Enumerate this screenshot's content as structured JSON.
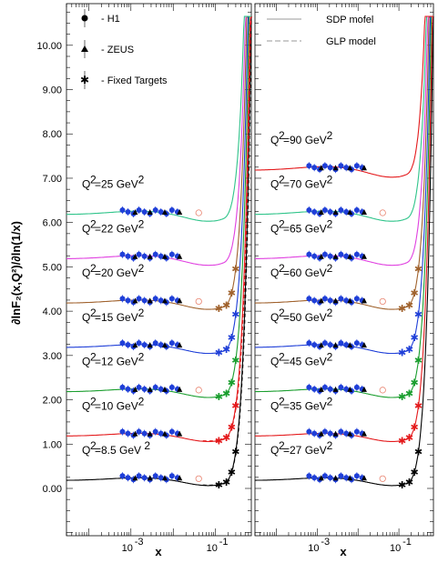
{
  "chart_data": {
    "type": "line",
    "ylabel": "∂lnF₂(x,Q²)/∂ln(1/x)",
    "xlabel_left": "x",
    "xlabel_right": "x",
    "x_scale": "log",
    "xlim": [
      3e-05,
      0.7
    ],
    "ylim": [
      -1.0,
      11.0
    ],
    "y_ticks": [
      "0.00",
      "1.00",
      "2.00",
      "3.00",
      "4.00",
      "5.00",
      "6.00",
      "7.00",
      "8.00",
      "9.00",
      "10.00"
    ],
    "x_ticks_left": [
      {
        "base": "10",
        "exp": "-3"
      },
      {
        "base": "10",
        "exp": "-1"
      }
    ],
    "x_ticks_right": [
      {
        "base": "10",
        "exp": "-3"
      },
      {
        "base": "10",
        "exp": "-1"
      }
    ],
    "legend_left": [
      {
        "marker": "circle",
        "label": "- H1"
      },
      {
        "marker": "triangle",
        "label": "- ZEUS"
      },
      {
        "marker": "star",
        "label": "- Fixed Targets"
      }
    ],
    "legend_right": [
      {
        "style": "solid",
        "label": "SDP mofel"
      },
      {
        "style": "dashed",
        "label": "GLP model"
      }
    ],
    "panels": [
      {
        "name": "left",
        "curves": [
          {
            "label": "8.5",
            "unit": "GeV",
            "offset": 0.18,
            "color": "#000000",
            "dashed": true
          },
          {
            "label": "10",
            "unit": "GeV",
            "offset": 1.18,
            "color": "#e41a1c",
            "dashed": true
          },
          {
            "label": "12",
            "unit": "GeV",
            "offset": 2.18,
            "color": "#1a9e2e",
            "dashed": false
          },
          {
            "label": "15",
            "unit": "GeV",
            "offset": 3.18,
            "color": "#1f3fd8",
            "dashed": false
          },
          {
            "label": "20",
            "unit": "GeV",
            "offset": 4.18,
            "color": "#a0622d",
            "dashed": false
          },
          {
            "label": "22",
            "unit": "GeV",
            "offset": 5.18,
            "color": "#e040e0",
            "dashed": false
          },
          {
            "label": "25",
            "unit": "GeV",
            "offset": 6.18,
            "color": "#2fc48a",
            "dashed": false
          }
        ]
      },
      {
        "name": "right",
        "curves": [
          {
            "label": "27",
            "unit": "GeV",
            "offset": 0.18,
            "color": "#000000",
            "dashed": false
          },
          {
            "label": "35",
            "unit": "GeV",
            "offset": 1.18,
            "color": "#e41a1c",
            "dashed": false
          },
          {
            "label": "45",
            "unit": "GeV",
            "offset": 2.18,
            "color": "#1a9e2e",
            "dashed": false
          },
          {
            "label": "50",
            "unit": "GeV",
            "offset": 3.18,
            "color": "#1f3fd8",
            "dashed": false
          },
          {
            "label": "60",
            "unit": "GeV",
            "offset": 4.18,
            "color": "#a0622d",
            "dashed": false
          },
          {
            "label": "65",
            "unit": "GeV",
            "offset": 5.18,
            "color": "#e040e0",
            "dashed": false
          },
          {
            "label": "70",
            "unit": "GeV",
            "offset": 6.18,
            "color": "#2fc48a",
            "dashed": false
          },
          {
            "label": "90",
            "unit": "GeV",
            "offset": 7.18,
            "color": "#e41a1c",
            "dashed": false
          }
        ]
      }
    ]
  }
}
